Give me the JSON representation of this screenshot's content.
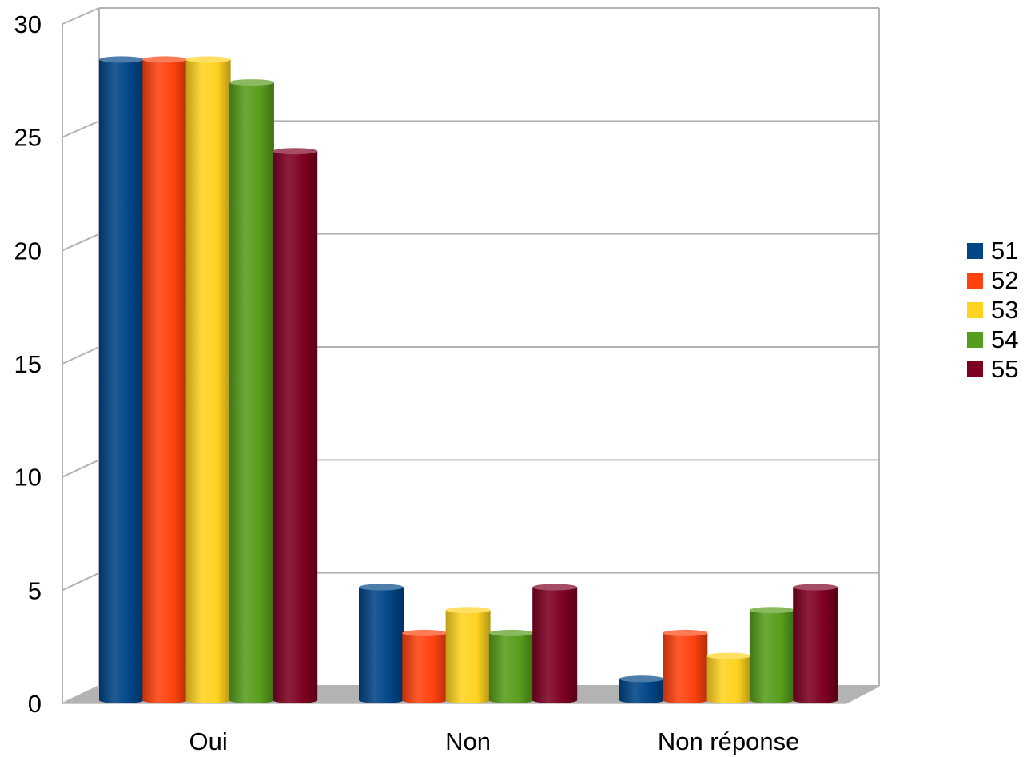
{
  "chart_data": {
    "type": "bar",
    "style": "3d-cylinder",
    "categories": [
      "Oui",
      "Non",
      "Non réponse"
    ],
    "series": [
      {
        "name": "51",
        "color": "#004586",
        "values": [
          28,
          5,
          1
        ]
      },
      {
        "name": "52",
        "color": "#ff420e",
        "values": [
          28,
          3,
          3
        ]
      },
      {
        "name": "53",
        "color": "#ffd320",
        "values": [
          28,
          4,
          2
        ]
      },
      {
        "name": "54",
        "color": "#579d1c",
        "values": [
          27,
          3,
          4
        ]
      },
      {
        "name": "55",
        "color": "#7e0021",
        "values": [
          24,
          5,
          5
        ]
      }
    ],
    "yticks": [
      "0",
      "5",
      "10",
      "15",
      "20",
      "25",
      "30"
    ],
    "ylim": [
      0,
      30
    ],
    "grid": true,
    "legend": "right",
    "title": "",
    "xlabel": "",
    "ylabel": ""
  }
}
